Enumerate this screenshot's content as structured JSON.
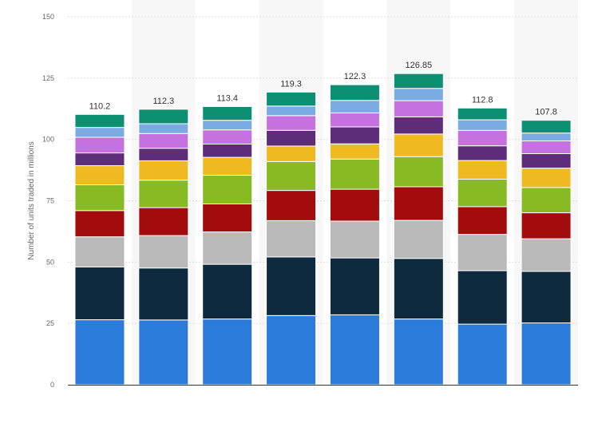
{
  "chart_data": {
    "type": "bar",
    "stacked": true,
    "title": "",
    "xlabel": "",
    "ylabel": "Number of units traded in millions",
    "ylim": [
      0,
      150
    ],
    "yticks": [
      0,
      25,
      50,
      75,
      100,
      125,
      150
    ],
    "grid": true,
    "categories": [
      "",
      "",
      "",
      "",
      "",
      "",
      "",
      ""
    ],
    "totals": [
      110.2,
      112.3,
      113.4,
      119.3,
      122.3,
      126.85,
      112.8,
      107.8
    ],
    "total_labels": [
      "110.2",
      "112.3",
      "113.4",
      "119.3",
      "122.3",
      "126.85",
      "112.8",
      "107.8"
    ],
    "series": [
      {
        "color": "#2b7bdb",
        "values": [
          26.5,
          26.4,
          26.8,
          28.2,
          28.5,
          26.8,
          24.7,
          25.2
        ]
      },
      {
        "color": "#0e2a3f",
        "values": [
          21.5,
          21.2,
          22.3,
          23.9,
          23.2,
          24.7,
          21.8,
          21.0
        ]
      },
      {
        "color": "#b9b9b9",
        "values": [
          12.3,
          13.2,
          13.2,
          14.8,
          15.0,
          15.5,
          14.8,
          13.3
        ]
      },
      {
        "color": "#a30c0c",
        "values": [
          10.7,
          11.4,
          11.4,
          12.3,
          13.0,
          13.7,
          11.3,
          10.6
        ]
      },
      {
        "color": "#88bb23",
        "values": [
          10.5,
          11.2,
          11.7,
          11.8,
          12.3,
          12.3,
          11.2,
          10.3
        ]
      },
      {
        "color": "#efb922",
        "values": [
          7.8,
          7.9,
          7.3,
          6.3,
          6.2,
          9.2,
          7.6,
          7.9
        ]
      },
      {
        "color": "#5d2d7a",
        "values": [
          5.2,
          5.1,
          5.4,
          6.4,
          6.9,
          7.0,
          6.0,
          5.9
        ]
      },
      {
        "color": "#c571e0",
        "values": [
          6.4,
          6.0,
          5.8,
          6.0,
          5.7,
          6.6,
          6.3,
          5.2
        ]
      },
      {
        "color": "#7aabe3",
        "values": [
          4.0,
          4.0,
          3.9,
          3.9,
          5.1,
          5.0,
          4.3,
          3.2
        ]
      },
      {
        "color": "#0d8f72",
        "values": [
          5.3,
          5.9,
          5.6,
          5.7,
          6.4,
          6.05,
          4.8,
          5.2
        ]
      }
    ]
  }
}
